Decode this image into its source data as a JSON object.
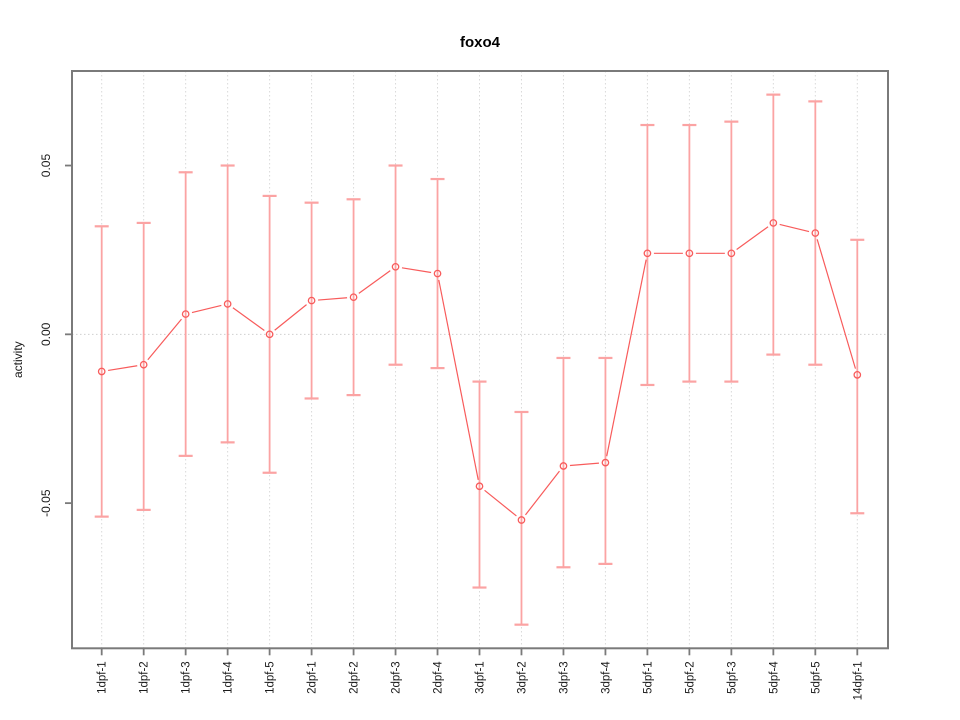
{
  "window": {
    "background": "#ffffff"
  },
  "chart_data": {
    "type": "line",
    "title": "foxo4",
    "xlabel": "",
    "ylabel": "activity",
    "legend": "none",
    "grid": "vertical dotted gridline at every category; horizontal dotted line at y=0 only",
    "point_style": "open circles with line segments broken around points (R type='b'), vertical error bars with end caps",
    "categories": [
      "1dpf-1",
      "1dpf-2",
      "1dpf-3",
      "1dpf-4",
      "1dpf-5",
      "2dpf-1",
      "2dpf-2",
      "2dpf-3",
      "2dpf-4",
      "3dpf-1",
      "3dpf-2",
      "3dpf-3",
      "3dpf-4",
      "5dpf-1",
      "5dpf-2",
      "5dpf-3",
      "5dpf-4",
      "5dpf-5",
      "14dpf-1"
    ],
    "series": [
      {
        "name": "activity",
        "values": [
          -0.011,
          -0.009,
          0.006,
          0.009,
          0.0,
          0.01,
          0.011,
          0.02,
          0.018,
          -0.045,
          -0.055,
          -0.039,
          -0.038,
          0.024,
          0.024,
          0.024,
          0.033,
          0.03,
          -0.012
        ],
        "upper": [
          0.032,
          0.033,
          0.048,
          0.05,
          0.041,
          0.039,
          0.04,
          0.05,
          0.046,
          -0.014,
          -0.023,
          -0.007,
          -0.007,
          0.062,
          0.062,
          0.063,
          0.071,
          0.069,
          0.028
        ],
        "lower": [
          -0.054,
          -0.052,
          -0.036,
          -0.032,
          -0.041,
          -0.019,
          -0.018,
          -0.009,
          -0.01,
          -0.075,
          -0.086,
          -0.069,
          -0.068,
          -0.015,
          -0.014,
          -0.014,
          -0.006,
          -0.009,
          -0.053
        ]
      }
    ],
    "y_ticks": [
      0.05,
      0.0,
      -0.05
    ],
    "y_tick_labels": [
      "0.05",
      "0.00",
      "-0.05"
    ],
    "ylim": [
      -0.093,
      0.078
    ],
    "colors": {
      "line": "#f85b5b",
      "point_stroke": "#f85b5b",
      "point_fill": "#ffffff",
      "error_bar": "#fba3a3",
      "box_axis": "#7a7a7a",
      "gridline": "#d9d9d9",
      "zero_line": "#cfcfcf",
      "tick_text": "#1a1a1a",
      "title_text": "#000000"
    }
  }
}
